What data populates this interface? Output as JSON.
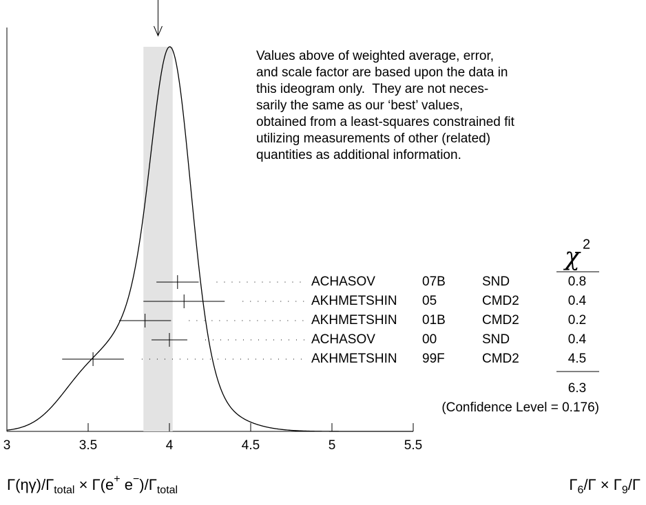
{
  "chart_data": {
    "type": "ideogram",
    "xlim": [
      3,
      5.5
    ],
    "xticks": [
      3,
      3.5,
      4,
      4.5,
      5,
      5.5
    ],
    "average": 3.93,
    "average_error": 0.09,
    "note": [
      "Values above of weighted average, error,",
      "and scale factor are based upon the data in",
      "this ideogram only.  They are not neces-",
      "sarily the same as our ‘best’ values,",
      "obtained from a least-squares constrained fit",
      "utilizing measurements of other (related)",
      "quantities as additional information."
    ],
    "measurements": {
      "names": [
        "ACHASOV",
        "AKHMETSHIN",
        "AKHMETSHIN",
        "ACHASOV",
        "AKHMETSHIN"
      ],
      "years": [
        "07B",
        "05",
        "01B",
        "00",
        "99F"
      ],
      "experiments": [
        "SND",
        "CMD2",
        "CMD2",
        "SND",
        "CMD2"
      ],
      "values": [
        4.05,
        4.09,
        3.85,
        4.0,
        3.53
      ],
      "errors": [
        0.13,
        0.25,
        0.16,
        0.11,
        0.19
      ],
      "chi2": [
        0.8,
        0.4,
        0.2,
        0.4,
        4.5
      ]
    },
    "chi2_header": {
      "symbol": "χ",
      "power": "2"
    },
    "chi2_total": 6.3,
    "confidence_label": "(Confidence Level = 0.176)",
    "x_label": [
      {
        "text": "Γ(ηγ)/Γ",
        "pos": "base"
      },
      {
        "text": "total",
        "pos": "sub"
      },
      {
        "text": " × Γ(e",
        "pos": "base"
      },
      {
        "text": "+",
        "pos": "sup"
      },
      {
        "text": " e",
        "pos": "base"
      },
      {
        "text": "−",
        "pos": "sup"
      },
      {
        "text": ")/Γ",
        "pos": "base"
      },
      {
        "text": "total",
        "pos": "sub"
      }
    ],
    "right_label": [
      {
        "text": "Γ",
        "pos": "base"
      },
      {
        "text": "6",
        "pos": "sub"
      },
      {
        "text": "/Γ × Γ",
        "pos": "base"
      },
      {
        "text": "9",
        "pos": "sub"
      },
      {
        "text": "/Γ",
        "pos": "base"
      }
    ]
  }
}
